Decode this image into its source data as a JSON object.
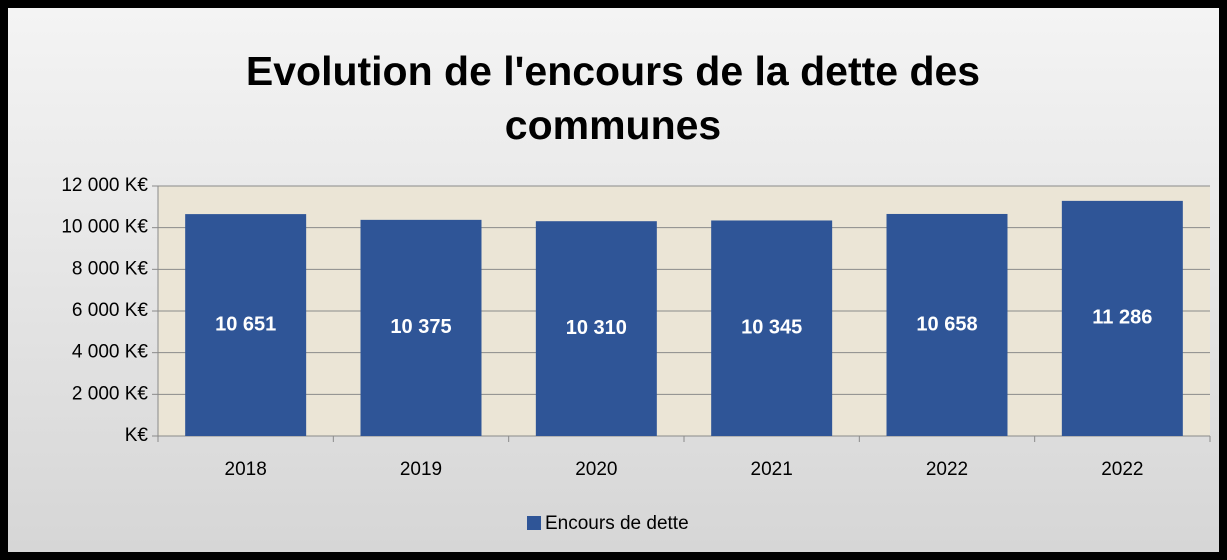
{
  "chart_data": {
    "type": "bar",
    "title": "Evolution de l'encours de la dette des communes",
    "categories": [
      "2018",
      "2019",
      "2020",
      "2021",
      "2022",
      "2022"
    ],
    "series": [
      {
        "name": "Encours de dette",
        "color": "#2f5597",
        "values": [
          10651,
          10375,
          10310,
          10345,
          10658,
          11286
        ],
        "value_labels": [
          "10 651",
          "10 375",
          "10 310",
          "10 345",
          "10 658",
          "11 286"
        ]
      }
    ],
    "ylim": [
      0,
      12000
    ],
    "yticks": [
      {
        "value": 0,
        "label": "K€"
      },
      {
        "value": 2000,
        "label": "2 000 K€"
      },
      {
        "value": 4000,
        "label": "4 000 K€"
      },
      {
        "value": 6000,
        "label": "6 000 K€"
      },
      {
        "value": 8000,
        "label": "8 000 K€"
      },
      {
        "value": 10000,
        "label": "10 000 K€"
      },
      {
        "value": 12000,
        "label": "12 000 K€"
      }
    ],
    "grid": true,
    "legend": "bottom"
  }
}
